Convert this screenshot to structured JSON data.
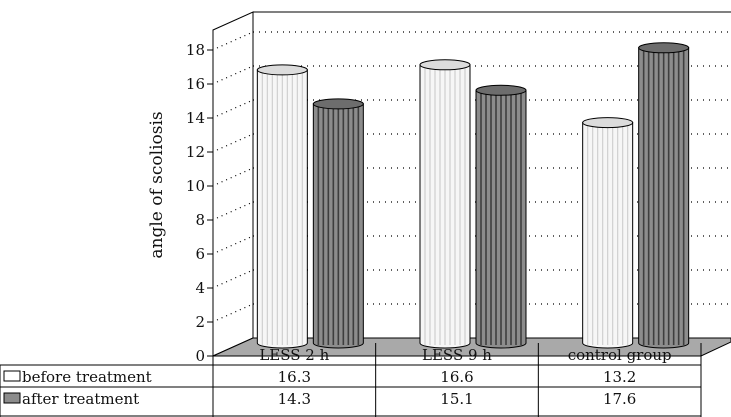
{
  "chart_data": {
    "type": "bar",
    "style": "3d-cylinder",
    "categories": [
      "LESS 2 h",
      "LESS 9 h",
      "control group"
    ],
    "series": [
      {
        "name": "before treatment",
        "values": [
          16.3,
          16.6,
          13.2
        ],
        "color": "#f4f4f4"
      },
      {
        "name": "after treatment",
        "values": [
          14.3,
          15.1,
          17.6
        ],
        "color": "#8c8c8c"
      }
    ],
    "ylabel": "angle of scoliosis",
    "xlabel": "",
    "ylim": [
      0,
      18
    ],
    "yticks": [
      0,
      2,
      4,
      6,
      8,
      10,
      12,
      14,
      16,
      18
    ],
    "grid": true,
    "floor_color": "#a9a9a9",
    "legend": "data-table-below"
  }
}
